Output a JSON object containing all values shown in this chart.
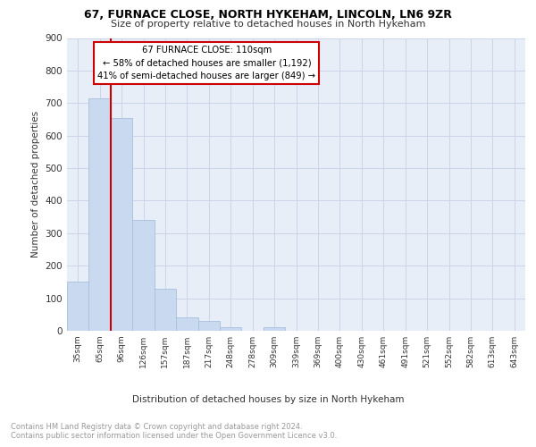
{
  "title1": "67, FURNACE CLOSE, NORTH HYKEHAM, LINCOLN, LN6 9ZR",
  "title2": "Size of property relative to detached houses in North Hykeham",
  "xlabel": "Distribution of detached houses by size in North Hykeham",
  "ylabel": "Number of detached properties",
  "categories": [
    "35sqm",
    "65sqm",
    "96sqm",
    "126sqm",
    "157sqm",
    "187sqm",
    "217sqm",
    "248sqm",
    "278sqm",
    "309sqm",
    "339sqm",
    "369sqm",
    "400sqm",
    "430sqm",
    "461sqm",
    "491sqm",
    "521sqm",
    "552sqm",
    "582sqm",
    "613sqm",
    "643sqm"
  ],
  "values": [
    150,
    715,
    655,
    340,
    130,
    42,
    30,
    12,
    0,
    10,
    0,
    0,
    0,
    0,
    0,
    0,
    0,
    0,
    0,
    0,
    0
  ],
  "bar_color": "#c9d9f0",
  "bar_edge_color": "#a8c0dc",
  "vline_color": "#cc0000",
  "annotation_text": "67 FURNACE CLOSE: 110sqm\n← 58% of detached houses are smaller (1,192)\n41% of semi-detached houses are larger (849) →",
  "annotation_box_color": "white",
  "annotation_box_edge": "#cc0000",
  "footnote": "Contains HM Land Registry data © Crown copyright and database right 2024.\nContains public sector information licensed under the Open Government Licence v3.0.",
  "ylim": [
    0,
    900
  ],
  "yticks": [
    0,
    100,
    200,
    300,
    400,
    500,
    600,
    700,
    800,
    900
  ],
  "grid_color": "#ccd5e8",
  "background_color": "#e8eef8"
}
